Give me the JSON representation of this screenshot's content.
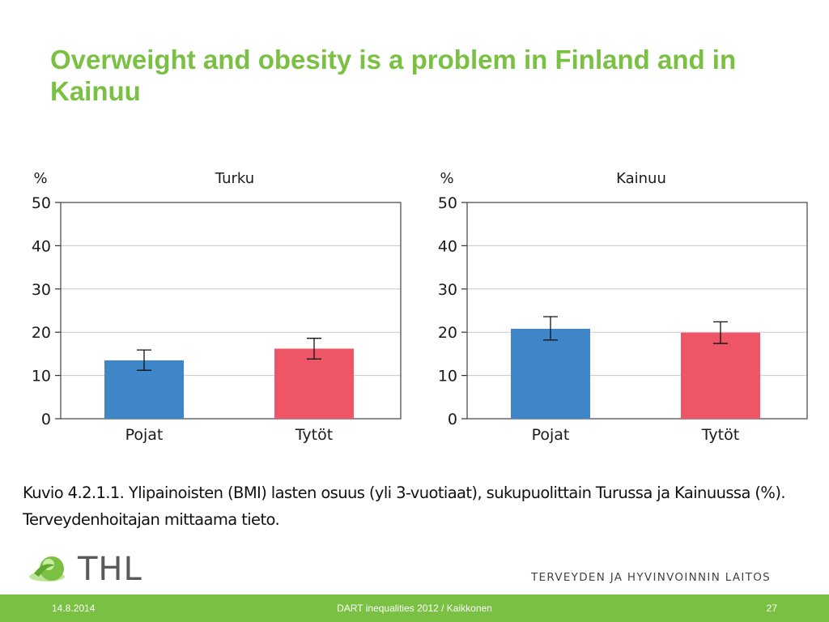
{
  "slide": {
    "title": "Overweight and obesity is a problem in Finland and in Kainuu",
    "caption_line1": "Kuvio 4.2.1.1. Ylipainoisten (BMI) lasten osuus (yli 3-vuotiaat), sukupuolittain Turussa ja Kainuussa (%).",
    "caption_line2": "Terveydenhoitajan mittaama tieto.",
    "logo_text": "THL",
    "org_name": "TERVEYDEN JA HYVINVOINNIN LAITOS",
    "footer": {
      "date": "14.8.2014",
      "center": "DART inequalities 2012 / Kaikkonen",
      "page": "27"
    }
  },
  "colors": {
    "title_green": "#7ac143",
    "boys_blue": "#3f86c9",
    "girls_red": "#ee5566",
    "footer_green": "#7ac143"
  },
  "chart_data": [
    {
      "type": "bar",
      "title": "Turku",
      "ylabel": "%",
      "ylim": [
        0,
        50
      ],
      "yticks": [
        0,
        10,
        20,
        30,
        40,
        50
      ],
      "grid": true,
      "categories": [
        "Pojat",
        "Tytöt"
      ],
      "values": [
        13.5,
        16.2
      ],
      "error_low": [
        11.2,
        13.8
      ],
      "error_high": [
        15.9,
        18.6
      ],
      "bar_colors": [
        "#3f86c9",
        "#ee5566"
      ]
    },
    {
      "type": "bar",
      "title": "Kainuu",
      "ylabel": "%",
      "ylim": [
        0,
        50
      ],
      "yticks": [
        0,
        10,
        20,
        30,
        40,
        50
      ],
      "grid": true,
      "categories": [
        "Pojat",
        "Tytöt"
      ],
      "values": [
        20.8,
        19.9
      ],
      "error_low": [
        18.2,
        17.4
      ],
      "error_high": [
        23.6,
        22.4
      ],
      "bar_colors": [
        "#3f86c9",
        "#ee5566"
      ]
    }
  ]
}
